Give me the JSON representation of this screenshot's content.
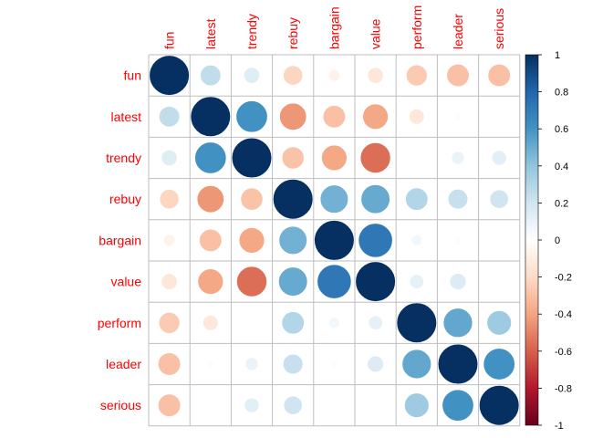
{
  "chart_data": {
    "type": "heatmap",
    "method": "circle",
    "variables": [
      "fun",
      "latest",
      "trendy",
      "rebuy",
      "bargain",
      "value",
      "perform",
      "leader",
      "serious"
    ],
    "matrix": [
      [
        1.0,
        0.25,
        0.14,
        -0.22,
        -0.07,
        -0.14,
        -0.26,
        -0.3,
        -0.3
      ],
      [
        0.25,
        1.0,
        0.61,
        -0.44,
        -0.3,
        -0.39,
        -0.13,
        -0.02,
        0.0
      ],
      [
        0.14,
        0.61,
        1.0,
        -0.29,
        -0.39,
        -0.56,
        0.0,
        0.09,
        0.12
      ],
      [
        -0.22,
        -0.44,
        -0.29,
        1.0,
        0.48,
        0.51,
        0.3,
        0.23,
        0.2
      ],
      [
        -0.07,
        -0.3,
        -0.39,
        0.48,
        1.0,
        0.72,
        0.06,
        0.02,
        0.0
      ],
      [
        -0.14,
        -0.39,
        -0.56,
        0.51,
        0.72,
        1.0,
        0.11,
        0.15,
        0.0
      ],
      [
        -0.26,
        -0.13,
        0.0,
        0.3,
        0.06,
        0.11,
        1.0,
        0.52,
        0.36
      ],
      [
        -0.3,
        -0.02,
        0.09,
        0.23,
        0.02,
        0.15,
        0.52,
        1.0,
        0.61
      ],
      [
        -0.3,
        0.0,
        0.12,
        0.2,
        0.0,
        0.0,
        0.36,
        0.61,
        1.0
      ]
    ],
    "colorbar": {
      "range": [
        -1,
        1
      ],
      "ticks": [
        "1",
        "0.8",
        "0.6",
        "0.4",
        "0.2",
        "0",
        "-0.2",
        "-0.4",
        "-0.6",
        "-0.8",
        "-1"
      ],
      "tick_values": [
        1,
        0.8,
        0.6,
        0.4,
        0.2,
        0,
        -0.2,
        -0.4,
        -0.6,
        -0.8,
        -1
      ]
    },
    "colors": {
      "stops": [
        "#67001F",
        "#B2182B",
        "#D6604D",
        "#F4A582",
        "#FDDBC7",
        "#FFFFFF",
        "#D1E5F0",
        "#92C5DE",
        "#4393C3",
        "#2166AC",
        "#053061"
      ],
      "label": "#FF0000",
      "grid": "#BEBEBE"
    },
    "grid": true,
    "legend_position": "right"
  }
}
